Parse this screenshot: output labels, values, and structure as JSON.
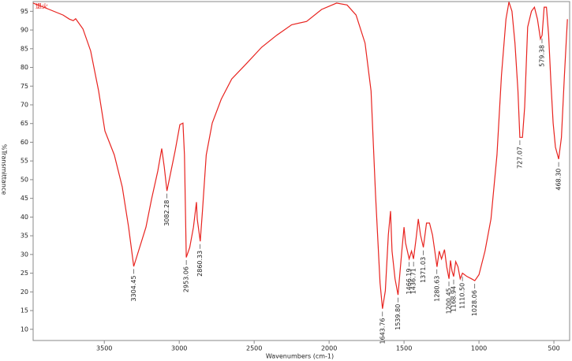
{
  "chart_data": {
    "type": "line",
    "xlabel": "Wavenumbers (cm-1)",
    "ylabel": "%Transmittance",
    "xlim": [
      3975,
      395
    ],
    "ylim": [
      7,
      97.6
    ],
    "xticks": [
      3500,
      3000,
      2500,
      2000,
      1500,
      1000,
      500
    ],
    "yticks": [
      10,
      15,
      20,
      25,
      30,
      35,
      40,
      45,
      50,
      55,
      60,
      65,
      70,
      75,
      80,
      85,
      90,
      95
    ],
    "series": [
      {
        "name": "退火",
        "color": "#e8231f",
        "x": [
          3975,
          3880,
          3775,
          3733,
          3707,
          3691,
          3643,
          3591,
          3538,
          3496,
          3433,
          3380,
          3338,
          3304,
          3222,
          3185,
          3143,
          3117,
          3100,
          3082,
          3028,
          2996,
          2975,
          2965,
          2953,
          2930,
          2905,
          2885,
          2880,
          2860,
          2845,
          2820,
          2780,
          2720,
          2650,
          2550,
          2450,
          2350,
          2250,
          2150,
          2050,
          1950,
          1880,
          1820,
          1760,
          1720,
          1690,
          1660,
          1644,
          1625,
          1605,
          1590,
          1580,
          1560,
          1540,
          1515,
          1500,
          1490,
          1466,
          1450,
          1437,
          1420,
          1405,
          1390,
          1371,
          1350,
          1330,
          1310,
          1295,
          1280,
          1265,
          1250,
          1230,
          1215,
          1200,
          1190,
          1180,
          1169,
          1155,
          1140,
          1125,
          1110,
          1080,
          1050,
          1028,
          1000,
          960,
          920,
          880,
          850,
          820,
          800,
          780,
          760,
          740,
          727,
          710,
          695,
          675,
          650,
          630,
          610,
          590,
          579,
          565,
          550,
          535,
          520,
          505,
          490,
          468,
          450,
          430,
          410
        ],
        "values": [
          97.2,
          95.7,
          94,
          92.9,
          92.5,
          93,
          90.3,
          84.4,
          73.7,
          63,
          56.6,
          48,
          37.3,
          26.8,
          37.3,
          44.8,
          52.3,
          58.3,
          53.4,
          47,
          57.6,
          64.7,
          65.1,
          56.6,
          29.2,
          31.9,
          37.3,
          44,
          39.5,
          33.5,
          41.6,
          56.6,
          65.1,
          71.5,
          76.9,
          81.1,
          85.4,
          88.6,
          91.4,
          92.3,
          95.5,
          97.2,
          96.7,
          94,
          86.5,
          73.7,
          45.9,
          22.4,
          15.5,
          20.3,
          35.2,
          41.6,
          30.9,
          23.5,
          19.2,
          30.9,
          37.3,
          33.1,
          28.8,
          30.9,
          28.8,
          34.1,
          39.5,
          35.2,
          31.9,
          38.4,
          38.4,
          35.2,
          30.9,
          26.7,
          30.9,
          28.8,
          31.3,
          26.7,
          23.5,
          28.4,
          25.6,
          24.1,
          28.1,
          26.7,
          23.5,
          25,
          24.1,
          23.5,
          23,
          24.6,
          30.9,
          39.5,
          56.6,
          77.9,
          92.9,
          97.5,
          95,
          86.5,
          73.7,
          61.3,
          61.3,
          69.4,
          90.8,
          95,
          96.1,
          92.9,
          87.6,
          88.6,
          96.1,
          96.1,
          88.6,
          75.8,
          65.1,
          58.7,
          55.5,
          61.3,
          77.9,
          92.9
        ]
      }
    ],
    "annotations": [
      {
        "value": 3304.45,
        "label": "3304.45"
      },
      {
        "value": 3082.28,
        "label": "3082.28"
      },
      {
        "value": 2953.06,
        "label": "2953.06"
      },
      {
        "value": 2860.33,
        "label": "2860.33"
      },
      {
        "value": 1643.76,
        "label": "1643.76"
      },
      {
        "value": 1539.8,
        "label": "1539.80"
      },
      {
        "value": 1466.19,
        "label": "1466.19"
      },
      {
        "value": 1436.71,
        "label": "1436.71"
      },
      {
        "value": 1371.03,
        "label": "1371.03"
      },
      {
        "value": 1280.63,
        "label": "1280.63"
      },
      {
        "value": 1200.45,
        "label": "1200.45"
      },
      {
        "value": 1168.94,
        "label": "1168.94"
      },
      {
        "value": 1110.5,
        "label": "1110.50"
      },
      {
        "value": 1028.06,
        "label": "1028.06"
      },
      {
        "value": 727.07,
        "label": "727.07"
      },
      {
        "value": 579.38,
        "label": "579.38"
      },
      {
        "value": 468.3,
        "label": "468.30"
      }
    ]
  }
}
